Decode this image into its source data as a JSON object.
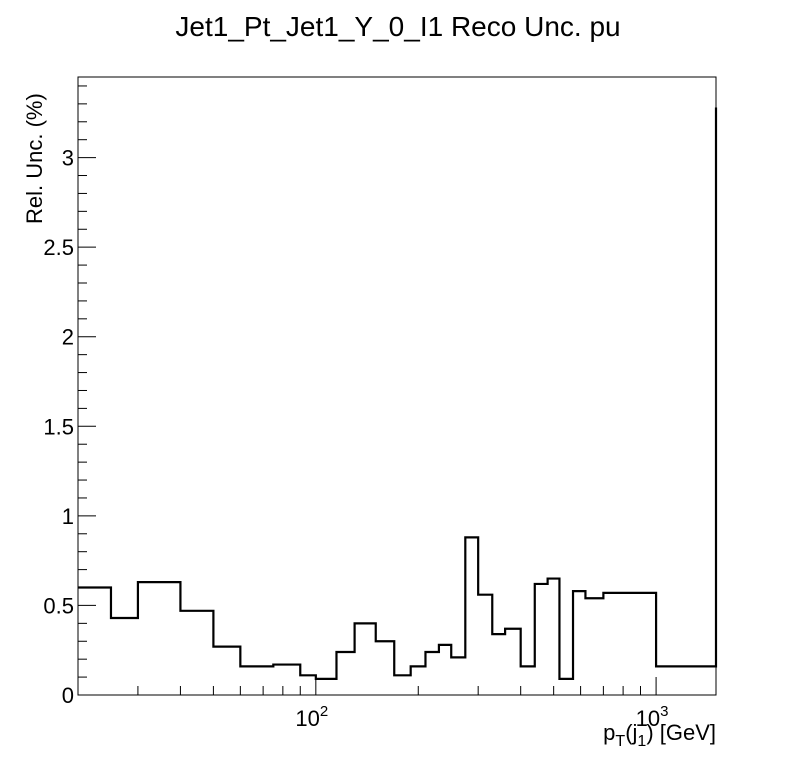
{
  "chart_data": {
    "type": "step",
    "title": "Jet1_Pt_Jet1_Y_0_I1 Reco Unc. pu",
    "xlabel": {
      "main": "p",
      "sub1": "T",
      "mid": "(j",
      "sub2": "1",
      "tail": ") [GeV]"
    },
    "ylabel": "Rel. Unc. (%)",
    "xscale": "log",
    "xlim": [
      20,
      1500
    ],
    "ylim": [
      0,
      3.45
    ],
    "y_ticks": [
      {
        "v": 0,
        "label": "0"
      },
      {
        "v": 0.5,
        "label": "0.5"
      },
      {
        "v": 1,
        "label": "1"
      },
      {
        "v": 1.5,
        "label": "1.5"
      },
      {
        "v": 2,
        "label": "2"
      },
      {
        "v": 2.5,
        "label": "2.5"
      },
      {
        "v": 3,
        "label": "3"
      }
    ],
    "x_ticks": [
      {
        "v": 100,
        "base": "10",
        "exp": "2"
      },
      {
        "v": 1000,
        "base": "10",
        "exp": "3"
      }
    ],
    "bin_edges": [
      20,
      25,
      30,
      40,
      50,
      60,
      75,
      90,
      100,
      115,
      130,
      150,
      170,
      190,
      210,
      230,
      250,
      275,
      300,
      330,
      360,
      400,
      440,
      480,
      520,
      570,
      620,
      700,
      1000,
      1500
    ],
    "values": [
      0.6,
      0.43,
      0.63,
      0.47,
      0.27,
      0.16,
      0.17,
      0.11,
      0.09,
      0.24,
      0.4,
      0.3,
      0.11,
      0.16,
      0.24,
      0.28,
      0.21,
      0.88,
      0.56,
      0.34,
      0.37,
      0.16,
      0.62,
      0.65,
      0.09,
      0.58,
      0.54,
      0.57,
      0.16,
      3.28
    ]
  }
}
